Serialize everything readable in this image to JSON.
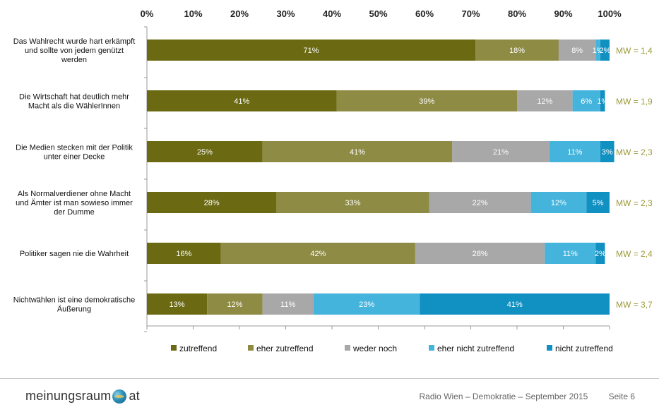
{
  "chart_data": {
    "type": "bar",
    "orientation": "horizontal",
    "stacked": true,
    "percent_axis": true,
    "xlim": [
      0,
      100
    ],
    "x_ticks": [
      "0%",
      "10%",
      "20%",
      "30%",
      "40%",
      "50%",
      "60%",
      "70%",
      "80%",
      "90%",
      "100%"
    ],
    "categories": [
      "Das Wahlrecht wurde hart erkämpft und sollte von jedem genützt werden",
      "Die Wirtschaft hat deutlich mehr Macht als die WählerInnen",
      "Die Medien stecken mit der Politik unter einer Decke",
      "Als Normalverdiener ohne Macht und Ämter ist man sowieso immer der Dumme",
      "Politiker sagen nie die Wahrheit",
      "Nichtwählen ist eine demokratische Äußerung"
    ],
    "category_lines": [
      [
        "Das Wahlrecht wurde hart erkämpft",
        "und sollte von jedem genützt",
        "werden"
      ],
      [
        "Die Wirtschaft hat deutlich mehr",
        "Macht als die WählerInnen"
      ],
      [
        "Die Medien stecken mit der Politik",
        "unter einer Decke"
      ],
      [
        "Als Normalverdiener ohne Macht",
        "und Ämter ist man sowieso immer",
        "der Dumme"
      ],
      [
        "Politiker sagen nie die Wahrheit"
      ],
      [
        "Nichtwählen ist eine demokratische",
        "Äußerung"
      ]
    ],
    "series": [
      {
        "name": "zutreffend",
        "color": "#6b6a13",
        "values": [
          71,
          41,
          25,
          28,
          16,
          13
        ]
      },
      {
        "name": "eher zutreffend",
        "color": "#8e8b44",
        "values": [
          18,
          39,
          41,
          33,
          42,
          12
        ]
      },
      {
        "name": "weder noch",
        "color": "#a8a8a8",
        "values": [
          8,
          12,
          21,
          22,
          28,
          11
        ]
      },
      {
        "name": "eher nicht zutreffend",
        "color": "#45b4dc",
        "values": [
          1,
          6,
          11,
          12,
          11,
          23
        ]
      },
      {
        "name": "nicht zutreffend",
        "color": "#1190c2",
        "values": [
          2,
          1,
          3,
          5,
          2,
          41
        ]
      }
    ],
    "bar_labels": [
      [
        "71%",
        "18%",
        "8%",
        "1%",
        "2%"
      ],
      [
        "41%",
        "39%",
        "12%",
        "6%",
        "1%"
      ],
      [
        "25%",
        "41%",
        "21%",
        "11%",
        "3%"
      ],
      [
        "28%",
        "33%",
        "22%",
        "12%",
        "5%"
      ],
      [
        "16%",
        "42%",
        "28%",
        "11%",
        "2%"
      ],
      [
        "13%",
        "12%",
        "11%",
        "23%",
        "41%"
      ]
    ],
    "mw_labels": [
      "MW = 1,4",
      "MW = 1,9",
      "MW = 2,3",
      "MW = 2,3",
      "MW = 2,4",
      "MW = 3,7"
    ],
    "mw_color": "#9c9a3a",
    "legend_position": "bottom",
    "grid": false
  },
  "footer": {
    "brand_left": "meinungsraum",
    "brand_right": "at",
    "title": "Radio Wien – Demokratie – September 2015",
    "page": "Seite 6"
  }
}
